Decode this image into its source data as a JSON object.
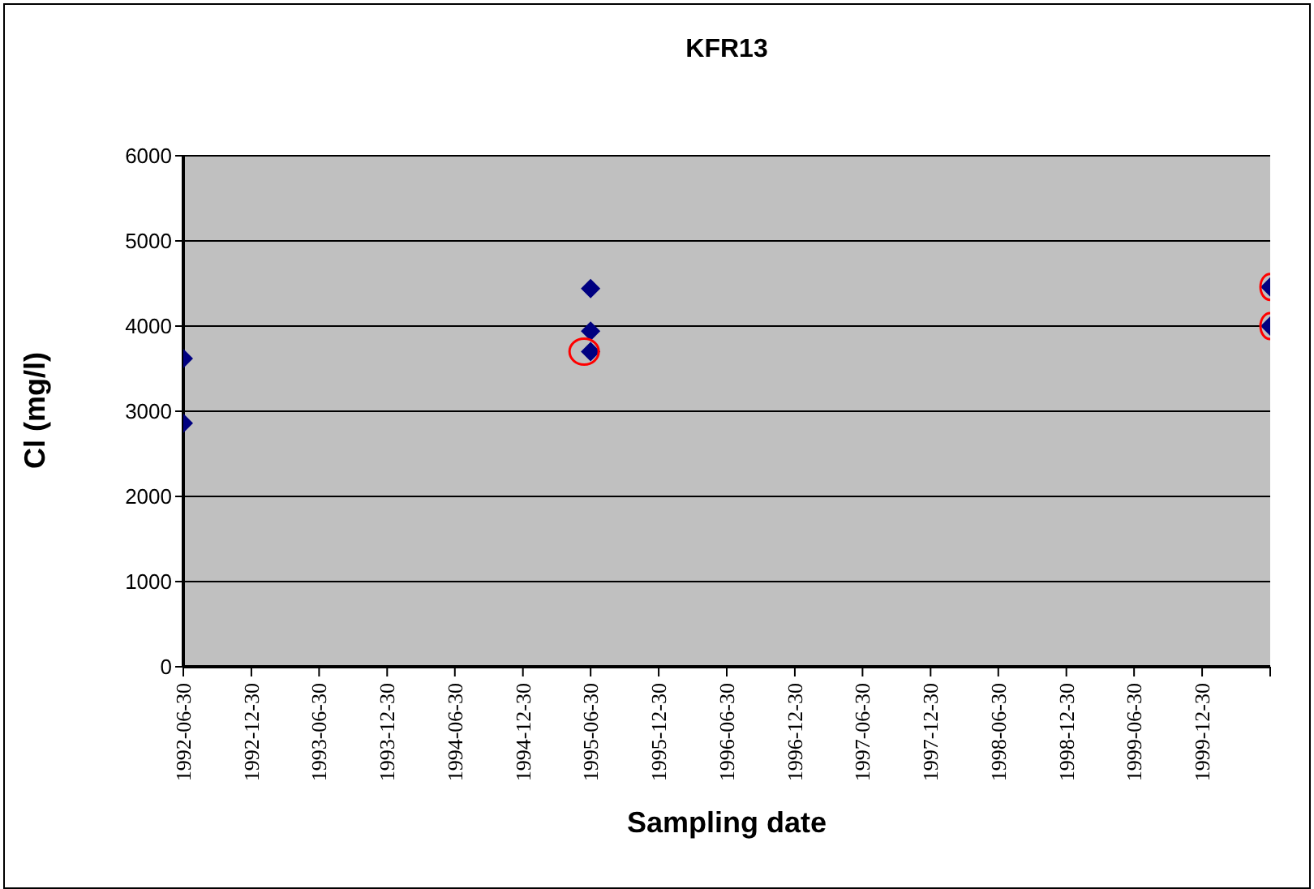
{
  "chart_data": {
    "type": "scatter",
    "title": "KFR13",
    "xlabel": "Sampling date",
    "ylabel": "Cl (mg/l)",
    "series": [
      {
        "color": "#000080",
        "x": [
          "1992-06-30",
          "1992-06-30",
          "1995-06-30",
          "1995-06-30",
          "1995-06-30",
          "2000-06-30",
          "2000-06-30"
        ],
        "values": [
          3620,
          2860,
          4440,
          3940,
          3700,
          4460,
          4000
        ]
      }
    ],
    "xlim": [
      "1992-06-30",
      "2000-06-30"
    ],
    "xticks": [
      {
        "value": "1992-06-30",
        "label": "1992-06-30"
      },
      {
        "value": "1992-12-30",
        "label": "1992-12-30"
      },
      {
        "value": "1993-06-30",
        "label": "1993-06-30"
      },
      {
        "value": "1993-12-30",
        "label": "1993-12-30"
      },
      {
        "value": "1994-06-30",
        "label": "1994-06-30"
      },
      {
        "value": "1994-12-30",
        "label": "1994-12-30"
      },
      {
        "value": "1995-06-30",
        "label": "1995-06-30"
      },
      {
        "value": "1995-12-30",
        "label": "1995-12-30"
      },
      {
        "value": "1996-06-30",
        "label": "1996-06-30"
      },
      {
        "value": "1996-12-30",
        "label": "1996-12-30"
      },
      {
        "value": "1997-06-30",
        "label": "1997-06-30"
      },
      {
        "value": "1997-12-30",
        "label": "1997-12-30"
      },
      {
        "value": "1998-06-30",
        "label": "1998-06-30"
      },
      {
        "value": "1998-12-30",
        "label": "1998-12-30"
      },
      {
        "value": "1999-06-30",
        "label": "1999-06-30"
      },
      {
        "value": "1999-12-30",
        "label": "1999-12-30"
      },
      {
        "value": "2000-06-30",
        "label": null
      }
    ],
    "ylim": [
      0,
      6000
    ],
    "yticks": [
      0,
      1000,
      2000,
      3000,
      4000,
      5000,
      6000
    ],
    "grid": "y",
    "marker": "diamond"
  }
}
